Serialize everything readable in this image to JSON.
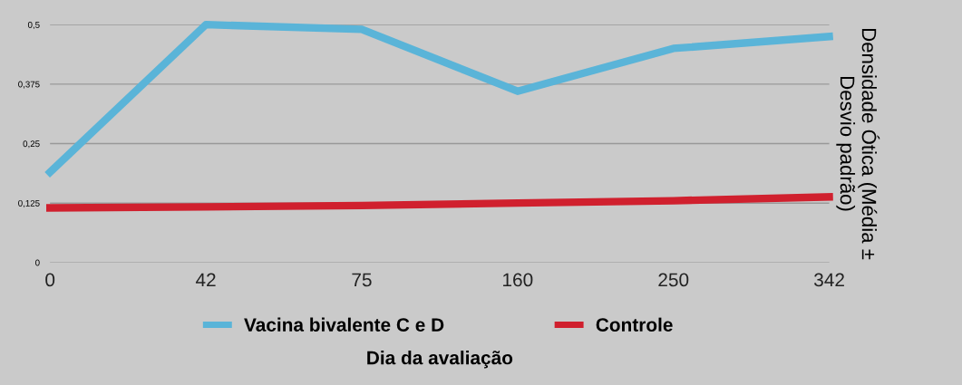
{
  "chart_data": {
    "type": "line",
    "xlabel": "Dia da avaliação",
    "ylabel": "Densidade Ótica (Média ± Desvio padrão)",
    "categories": [
      "0",
      "42",
      "75",
      "160",
      "250",
      "342"
    ],
    "series": [
      {
        "name": "Vacina bivalente C e D",
        "color": "#5ab4d8",
        "values": [
          0.19,
          0.5,
          0.49,
          0.36,
          0.45,
          0.475
        ]
      },
      {
        "name": "Controle",
        "color": "#d0202e",
        "values": [
          0.115,
          0.117,
          0.12,
          0.125,
          0.13,
          0.138
        ]
      }
    ],
    "ylim": [
      0,
      0.5
    ],
    "yticks": [
      {
        "value": 0,
        "label": "0"
      },
      {
        "value": 0.125,
        "label": "0,125"
      },
      {
        "value": 0.25,
        "label": "0,25"
      },
      {
        "value": 0.375,
        "label": "0,375"
      },
      {
        "value": 0.5,
        "label": "0,5"
      }
    ],
    "grid": "y",
    "legend": "bottom",
    "marker": "none",
    "line_style": "solid"
  }
}
